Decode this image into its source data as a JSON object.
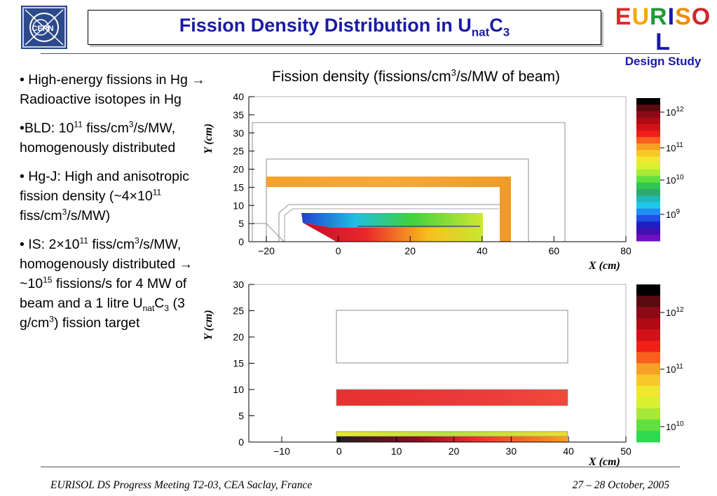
{
  "header": {
    "logo_text": "CERN",
    "title_main": "Fission Density Distribution in U",
    "title_sub": "nat",
    "title_end": "C",
    "title_sub2": "3",
    "brand_word": "EURISOL",
    "brand_colors": [
      "#e8262a",
      "#f5a700",
      "#1f9a3a",
      "#1a1aa6",
      "#f08c00",
      "#d2242a",
      "#1a1aa6"
    ],
    "brand_sub": "Design Study"
  },
  "bullets": [
    {
      "id": "hg",
      "text": "• High-energy fissions in Hg → Radioactive isotopes in Hg"
    },
    {
      "id": "bld",
      "p1": "•BLD: 10",
      "s1": "11",
      "p2": " fiss/cm",
      "s2": "3",
      "p3": "/s/MW, homogenously distributed"
    },
    {
      "id": "hgj",
      "p1": "• Hg-J: High and anisotropic fission density (~4×10",
      "s1": "11",
      "p2": " fiss/cm",
      "s2": "3",
      "p3": "/s/MW)"
    },
    {
      "id": "is",
      "p1": "• IS: 2×10",
      "s1": "11",
      "p2": " fiss/cm",
      "s2": "3",
      "p3": "/s/MW, homogenously distributed → ~10",
      "s3": "15",
      "p4": " fissions/s for 4 MW of beam and a 1 litre U",
      "sub1": "nat",
      "p5": "C",
      "sub2": "3",
      "p6": " (3 g/cm",
      "s4": "3",
      "p7": ") fission target"
    }
  ],
  "caption": {
    "pre": "Fission density (fissions/cm",
    "sup": "3",
    "post": "/s/MW of beam)"
  },
  "plot1": {
    "xlabel": "X (cm)",
    "ylabel": "Y (cm)",
    "xticks": [
      "−20",
      "0",
      "20",
      "40",
      "60",
      "80"
    ],
    "yticks": [
      "0",
      "5",
      "10",
      "15",
      "20",
      "25",
      "30",
      "35",
      "40"
    ],
    "colorbar_labels": [
      {
        "base": "10",
        "exp": "12"
      },
      {
        "base": "10",
        "exp": "11"
      },
      {
        "base": "10",
        "exp": "10"
      },
      {
        "base": "10",
        "exp": "9"
      }
    ]
  },
  "plot2": {
    "xlabel": "X (cm)",
    "ylabel": "Y (cm)",
    "xticks": [
      "−10",
      "0",
      "10",
      "20",
      "30",
      "40",
      "50"
    ],
    "yticks": [
      "0",
      "5",
      "10",
      "15",
      "20",
      "25",
      "30"
    ],
    "colorbar_labels": [
      {
        "base": "10",
        "exp": "12"
      },
      {
        "base": "10",
        "exp": "11"
      },
      {
        "base": "10",
        "exp": "10"
      }
    ]
  },
  "footer": {
    "left": "EURISOL DS Progress Meeting T2-03, CEA Saclay, France",
    "right": "27 – 28 October, 2005"
  }
}
